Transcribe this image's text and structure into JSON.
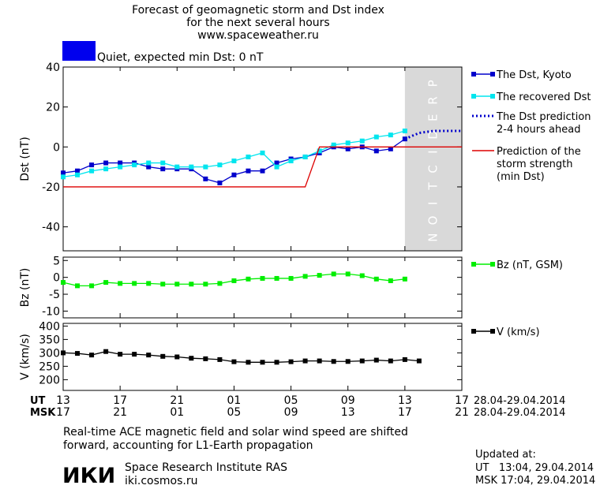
{
  "header": {
    "title_line1": "Forecast of geomagnetic storm and Dst index",
    "title_line2": "for the next several hours",
    "site": "www.spaceweather.ru",
    "status_text": "Quiet, expected min Dst: 0 nT",
    "status_color": "#0000ee"
  },
  "colors": {
    "dst_kyoto": "#0000cc",
    "dst_recovered": "#00e5ee",
    "dst_prediction": "#0000cc",
    "storm_strength": "#dd0000",
    "bz": "#00ee00",
    "v": "#000000",
    "prediction_zone": "#d9d9d9"
  },
  "chart_data": [
    {
      "type": "line",
      "ylabel": "Dst (nT)",
      "ylim": [
        -52,
        40
      ],
      "yticks": [
        40,
        20,
        0,
        -20,
        -40
      ],
      "xlim": [
        0,
        28
      ],
      "prediction_label": "PREDICTION",
      "prediction_range": [
        24,
        28
      ],
      "series": [
        {
          "name": "The Dst, Kyoto",
          "key": "kyoto",
          "style": "line-square",
          "x": [
            0,
            1,
            2,
            3,
            4,
            5,
            6,
            7,
            8,
            9,
            10,
            11,
            12,
            13,
            14,
            15,
            16,
            17,
            18,
            19,
            20,
            21,
            22,
            23,
            24
          ],
          "y": [
            -13,
            -12,
            -9,
            -8,
            -8,
            -8,
            -10,
            -11,
            -11,
            -11,
            -16,
            -18,
            -14,
            -12,
            -12,
            -8,
            -6,
            -5,
            -3,
            0,
            -1,
            0,
            -2,
            -1,
            4
          ]
        },
        {
          "name": "The recovered Dst",
          "key": "recovered",
          "style": "line-square",
          "x": [
            0,
            1,
            2,
            3,
            4,
            5,
            6,
            7,
            8,
            9,
            10,
            11,
            12,
            13,
            14,
            15,
            16,
            17,
            18,
            19,
            20,
            21,
            22,
            23,
            24
          ],
          "y": [
            -15,
            -14,
            -12,
            -11,
            -10,
            -9,
            -8,
            -8,
            -10,
            -10,
            -10,
            -9,
            -7,
            -5,
            -3,
            -10,
            -7,
            -5,
            -2,
            1,
            2,
            3,
            5,
            6,
            8
          ]
        },
        {
          "name": "The Dst prediction 2-4 hours ahead",
          "key": "prediction",
          "style": "dotted",
          "x": [
            24,
            25,
            26,
            27,
            28
          ],
          "y": [
            4,
            7,
            8,
            8,
            8
          ]
        },
        {
          "name": "Prediction of the storm strength (min Dst)",
          "key": "storm",
          "style": "line",
          "x": [
            0,
            17,
            18,
            28
          ],
          "y": [
            -20,
            -20,
            0,
            0
          ]
        }
      ],
      "legend": [
        {
          "lines": [
            "The Dst, Kyoto"
          ],
          "key": "kyoto"
        },
        {
          "lines": [
            "The recovered Dst"
          ],
          "key": "recovered"
        },
        {
          "lines": [
            "The Dst prediction",
            "2-4 hours ahead"
          ],
          "key": "prediction"
        },
        {
          "lines": [
            "Prediction of the",
            "storm strength",
            "(min Dst)"
          ],
          "key": "storm"
        }
      ]
    },
    {
      "type": "line",
      "ylabel": "Bz (nT)",
      "ylim": [
        -12,
        6
      ],
      "yticks": [
        5,
        0,
        -5,
        -10
      ],
      "xlim": [
        0,
        28
      ],
      "series": [
        {
          "name": "Bz (nT, GSM)",
          "key": "bz",
          "style": "line-square",
          "x": [
            0,
            1,
            2,
            3,
            4,
            5,
            6,
            7,
            8,
            9,
            10,
            11,
            12,
            13,
            14,
            15,
            16,
            17,
            18,
            19,
            20,
            21,
            22,
            23,
            24
          ],
          "y": [
            -1.5,
            -2.5,
            -2.5,
            -1.5,
            -1.8,
            -1.8,
            -1.8,
            -2,
            -2,
            -2,
            -2,
            -1.8,
            -1,
            -0.5,
            -0.3,
            -0.3,
            -0.3,
            0.3,
            0.6,
            1,
            1,
            0.5,
            -0.5,
            -1,
            -0.5
          ]
        }
      ],
      "legend": [
        {
          "lines": [
            "Bz (nT, GSM)"
          ],
          "key": "bz"
        }
      ]
    },
    {
      "type": "line",
      "ylabel": "V (km/s)",
      "ylim": [
        160,
        410
      ],
      "yticks": [
        400,
        350,
        300,
        250,
        200
      ],
      "xlim": [
        0,
        28
      ],
      "series": [
        {
          "name": "V (km/s)",
          "key": "v",
          "style": "line-square",
          "x": [
            0,
            1,
            2,
            3,
            4,
            5,
            6,
            7,
            8,
            9,
            10,
            11,
            12,
            13,
            14,
            15,
            16,
            17,
            18,
            19,
            20,
            21,
            22,
            23,
            24,
            25
          ],
          "y": [
            300,
            298,
            292,
            305,
            295,
            295,
            292,
            287,
            285,
            280,
            278,
            275,
            267,
            265,
            265,
            265,
            267,
            270,
            270,
            268,
            268,
            270,
            273,
            270,
            275,
            270
          ]
        }
      ],
      "legend": [
        {
          "lines": [
            "V (km/s)"
          ],
          "key": "v"
        }
      ]
    }
  ],
  "x_axis": {
    "ut_label": "UT",
    "msk_label": "MSK",
    "ticks": [
      0,
      4,
      8,
      12,
      16,
      20,
      24,
      28
    ],
    "ut_hours": [
      "13",
      "17",
      "21",
      "01",
      "05",
      "09",
      "13",
      "17"
    ],
    "msk_hours": [
      "17",
      "21",
      "01",
      "05",
      "09",
      "13",
      "17",
      "21"
    ],
    "ut_dates": "28.04-29.04.2014",
    "msk_dates": "28.04-29.04.2014"
  },
  "footer": {
    "note_line1": "Real-time ACE magnetic field and solar wind speed are shifted",
    "note_line2": "forward, accounting for L1-Earth propagation",
    "logo_text": "ИКИ",
    "institute": "Space Research Institute RAS",
    "institute_site": "iki.cosmos.ru",
    "updated_label": "Updated at:",
    "updated_ut": "UT   13:04, 29.04.2014",
    "updated_msk": "MSK 17:04, 29.04.2014"
  }
}
